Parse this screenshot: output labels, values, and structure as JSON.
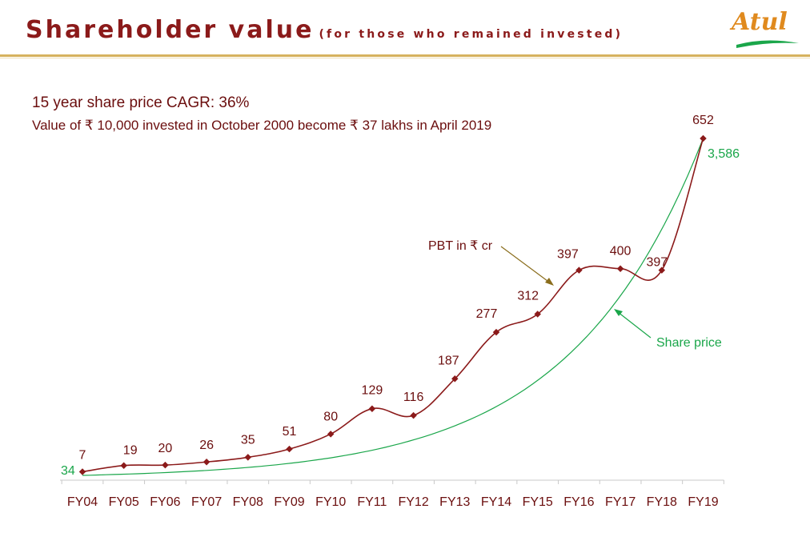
{
  "header": {
    "title": "Shareholder value",
    "title_note": "(for those who remained invested)",
    "logo_text": "Atul"
  },
  "subtitle": {
    "line1": "15 year share price CAGR: 36%",
    "line2": "Value of ₹ 10,000 invested in October 2000 become ₹ 37 lakhs in April 2019"
  },
  "colors": {
    "title": "#8B1A1A",
    "pbt_series": "#8B1A1A",
    "share_series": "#1aa64a",
    "axis": "#c9c9c9",
    "header_rule": "#d6b25e",
    "logo": "#e08a1e"
  },
  "chart_data": {
    "type": "line",
    "categories": [
      "FY04",
      "FY05",
      "FY06",
      "FY07",
      "FY08",
      "FY09",
      "FY10",
      "FY11",
      "FY12",
      "FY13",
      "FY14",
      "FY15",
      "FY16",
      "FY17",
      "FY18",
      "FY19"
    ],
    "series": [
      {
        "name": "PBT in ₹ cr",
        "values": [
          7,
          19,
          20,
          26,
          35,
          51,
          80,
          129,
          116,
          187,
          277,
          312,
          397,
          400,
          397,
          652
        ],
        "labels": [
          "7",
          "19",
          "20",
          "26",
          "35",
          "51",
          "80",
          "129",
          "116",
          "187",
          "277",
          "312",
          "397",
          "400",
          "397",
          "652"
        ],
        "markers": true,
        "curve": "smooth"
      },
      {
        "name": "Share price",
        "start_label": "34",
        "end_label": "3,586",
        "start_value": 34,
        "end_value": 3586,
        "curve": "exponential"
      }
    ],
    "annotations": [
      {
        "text": "PBT in ₹ cr",
        "points_to": "PBT in ₹ cr"
      },
      {
        "text": "Share price",
        "points_to": "Share price"
      }
    ],
    "ylim": [
      0,
      652
    ],
    "grid": false,
    "legend": "none"
  }
}
